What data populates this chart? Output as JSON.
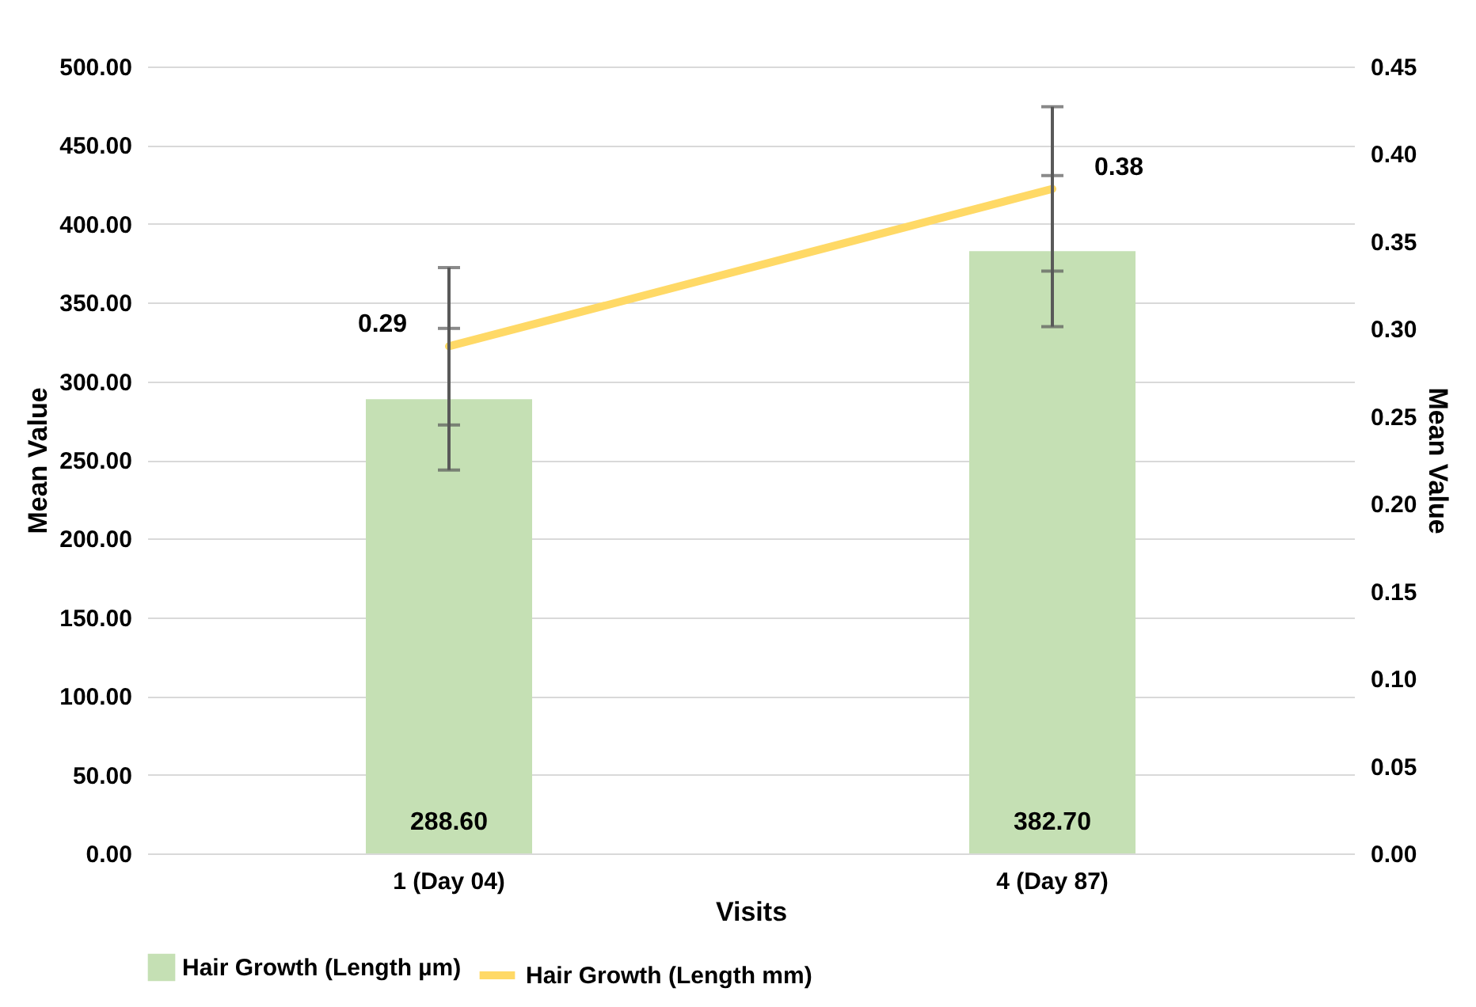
{
  "chart_data": {
    "type": "bar",
    "categories": [
      "1 (Day 04)",
      "4 (Day 87)"
    ],
    "xlabel": "Visits",
    "ylabel": "Mean Value",
    "y2label": "Mean Value",
    "ylim": [
      0,
      500
    ],
    "yticks": [
      {
        "value": 0,
        "label": "0.00"
      },
      {
        "value": 50,
        "label": "50.00"
      },
      {
        "value": 100,
        "label": "100.00"
      },
      {
        "value": 150,
        "label": "150.00"
      },
      {
        "value": 200,
        "label": "200.00"
      },
      {
        "value": 250,
        "label": "250.00"
      },
      {
        "value": 300,
        "label": "300.00"
      },
      {
        "value": 350,
        "label": "350.00"
      },
      {
        "value": 400,
        "label": "400.00"
      },
      {
        "value": 450,
        "label": "450.00"
      },
      {
        "value": 500,
        "label": "500.00"
      }
    ],
    "y2lim": [
      0,
      0.45
    ],
    "y2ticks": [
      {
        "value": 0,
        "label": "0.00"
      },
      {
        "value": 0.05,
        "label": "0.05"
      },
      {
        "value": 0.1,
        "label": "0.10"
      },
      {
        "value": 0.15,
        "label": "0.15"
      },
      {
        "value": 0.2,
        "label": "0.20"
      },
      {
        "value": 0.25,
        "label": "0.25"
      },
      {
        "value": 0.3,
        "label": "0.30"
      },
      {
        "value": 0.35,
        "label": "0.35"
      },
      {
        "value": 0.4,
        "label": "0.40"
      },
      {
        "value": 0.45,
        "label": "0.45"
      }
    ],
    "grid": "y",
    "legend": "bottom",
    "series": [
      {
        "name": "Hair Growth (Length µm)",
        "color": "#c5e0b4",
        "values": [
          288.6,
          382.7
        ],
        "errors": [
          45,
          48
        ],
        "value_labels": [
          "288.60",
          "382.70"
        ]
      },
      {
        "name": "Hair Growth (Length mm)",
        "type": "line",
        "axis": "y2",
        "color": "#ffd966",
        "values": [
          0.29,
          0.38
        ],
        "errors": [
          0.045,
          0.047
        ],
        "value_labels": [
          "0.29",
          "0.38"
        ]
      }
    ]
  }
}
